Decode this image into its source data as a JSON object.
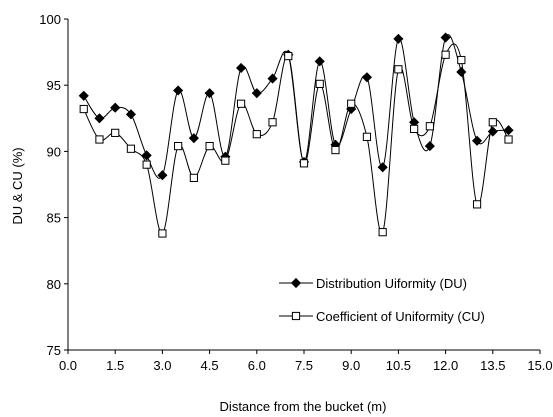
{
  "chart_data": {
    "type": "line",
    "xlabel": "Distance from the bucket (m)",
    "ylabel": "DU & CU (%)",
    "xlim": [
      0,
      15
    ],
    "ylim": [
      75,
      100
    ],
    "xticks": [
      "0.0",
      "1.5",
      "3.0",
      "4.5",
      "6.0",
      "7.5",
      "9.0",
      "10.5",
      "12.0",
      "13.5",
      "15.0"
    ],
    "yticks": [
      "75",
      "80",
      "85",
      "90",
      "95",
      "100"
    ],
    "grid": false,
    "legend_position": "bottom-right",
    "x": [
      0.5,
      1.0,
      1.5,
      2.0,
      2.5,
      3.0,
      3.5,
      4.0,
      4.5,
      5.0,
      5.5,
      6.0,
      6.5,
      7.0,
      7.5,
      8.0,
      8.5,
      9.0,
      9.5,
      10.0,
      10.5,
      11.0,
      11.5,
      12.0,
      12.5,
      13.0,
      13.5,
      14.0
    ],
    "series": [
      {
        "name": "Distribution Uiformity (DU)",
        "marker": "diamond-filled",
        "color": "#000000",
        "values": [
          94.2,
          92.5,
          93.3,
          92.8,
          89.7,
          88.2,
          94.6,
          91.0,
          94.4,
          89.6,
          96.3,
          94.4,
          95.5,
          97.3,
          89.2,
          96.8,
          90.5,
          93.2,
          95.6,
          88.8,
          98.5,
          92.2,
          90.4,
          98.6,
          96.0,
          90.8,
          91.5,
          91.6
        ]
      },
      {
        "name": "Coefficient of Uniformity (CU)",
        "marker": "square-open",
        "color": "#000000",
        "values": [
          93.2,
          90.9,
          91.4,
          90.2,
          89.0,
          83.8,
          90.4,
          88.0,
          90.4,
          89.3,
          93.6,
          91.3,
          92.2,
          97.2,
          89.1,
          95.1,
          90.1,
          93.6,
          91.1,
          83.9,
          96.2,
          91.7,
          91.9,
          97.3,
          96.9,
          86.0,
          92.2,
          90.9
        ]
      }
    ]
  }
}
